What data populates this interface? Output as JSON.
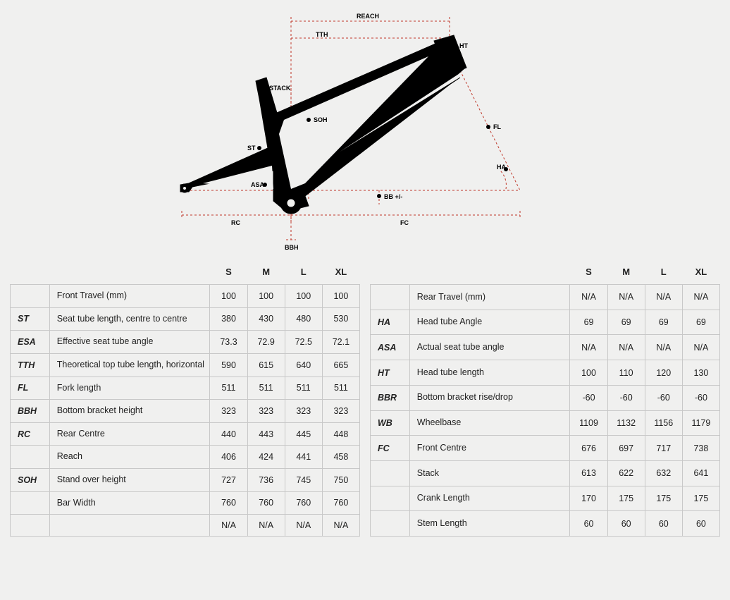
{
  "diagram": {
    "frame_color": "#000000",
    "dimension_line_color": "#c0392b",
    "dot_color": "#000000",
    "background_color": "#f0f0ef",
    "labels": {
      "REACH": "REACH",
      "TTH": "TTH",
      "HT": "HT",
      "STACK": "STACK",
      "SOH": "SOH",
      "ST": "ST",
      "FL": "FL",
      "ASA": "ASA",
      "HA": "HA",
      "BB": "BB +/-",
      "RC": "RC",
      "FC": "FC",
      "BBH": "BBH"
    }
  },
  "sizes": [
    "S",
    "M",
    "L",
    "XL"
  ],
  "table_left": {
    "rows": [
      {
        "code": "",
        "label": "Front Travel (mm)",
        "values": [
          "100",
          "100",
          "100",
          "100"
        ]
      },
      {
        "code": "ST",
        "label": "Seat tube length, centre to centre",
        "values": [
          "380",
          "430",
          "480",
          "530"
        ]
      },
      {
        "code": "ESA",
        "label": "Effective seat tube angle",
        "values": [
          "73.3",
          "72.9",
          "72.5",
          "72.1"
        ]
      },
      {
        "code": "TTH",
        "label": "Theoretical top tube length, horizontal",
        "values": [
          "590",
          "615",
          "640",
          "665"
        ]
      },
      {
        "code": "FL",
        "label": "Fork length",
        "values": [
          "511",
          "511",
          "511",
          "511"
        ]
      },
      {
        "code": "BBH",
        "label": "Bottom bracket height",
        "values": [
          "323",
          "323",
          "323",
          "323"
        ]
      },
      {
        "code": "RC",
        "label": "Rear Centre",
        "values": [
          "440",
          "443",
          "445",
          "448"
        ]
      },
      {
        "code": "",
        "label": "Reach",
        "values": [
          "406",
          "424",
          "441",
          "458"
        ]
      },
      {
        "code": "SOH",
        "label": "Stand over height",
        "values": [
          "727",
          "736",
          "745",
          "750"
        ]
      },
      {
        "code": "",
        "label": "Bar Width",
        "values": [
          "760",
          "760",
          "760",
          "760"
        ]
      },
      {
        "code": "",
        "label": "",
        "values": [
          "N/A",
          "N/A",
          "N/A",
          "N/A"
        ]
      }
    ]
  },
  "table_right": {
    "rows": [
      {
        "code": "",
        "label": "Rear Travel (mm)",
        "values": [
          "N/A",
          "N/A",
          "N/A",
          "N/A"
        ]
      },
      {
        "code": "HA",
        "label": "Head tube Angle",
        "values": [
          "69",
          "69",
          "69",
          "69"
        ]
      },
      {
        "code": "ASA",
        "label": "Actual seat tube angle",
        "values": [
          "N/A",
          "N/A",
          "N/A",
          "N/A"
        ]
      },
      {
        "code": "HT",
        "label": "Head tube length",
        "values": [
          "100",
          "110",
          "120",
          "130"
        ]
      },
      {
        "code": "BBR",
        "label": "Bottom bracket rise/drop",
        "values": [
          "-60",
          "-60",
          "-60",
          "-60"
        ]
      },
      {
        "code": "WB",
        "label": "Wheelbase",
        "values": [
          "1109",
          "1132",
          "1156",
          "1179"
        ]
      },
      {
        "code": "FC",
        "label": "Front Centre",
        "values": [
          "676",
          "697",
          "717",
          "738"
        ]
      },
      {
        "code": "",
        "label": "Stack",
        "values": [
          "613",
          "622",
          "632",
          "641"
        ]
      },
      {
        "code": "",
        "label": "Crank Length",
        "values": [
          "170",
          "175",
          "175",
          "175"
        ]
      },
      {
        "code": "",
        "label": "Stem Length",
        "values": [
          "60",
          "60",
          "60",
          "60"
        ]
      }
    ]
  },
  "style": {
    "table_border_color": "#c8c8c8",
    "text_color": "#222222",
    "header_fontsize": 13,
    "cell_fontsize": 12.5
  }
}
